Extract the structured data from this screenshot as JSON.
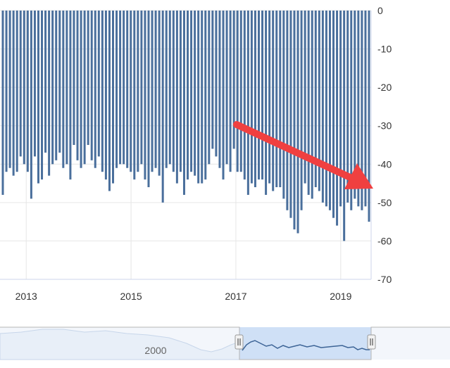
{
  "chart_data": {
    "type": "bar",
    "title": "",
    "xlabel": "",
    "ylabel": "",
    "ylim": [
      -70,
      0
    ],
    "y_ticks": [
      0,
      -10,
      -20,
      -30,
      -40,
      -50,
      -60,
      -70
    ],
    "x_ticks": [
      "2013",
      "2015",
      "2017",
      "2019"
    ],
    "x_range": [
      2012.5,
      2019.58
    ],
    "bar_color": "#4a6f9c",
    "grid": true,
    "values": [
      -48,
      -42,
      -41,
      -43,
      -42,
      -38,
      -40,
      -42,
      -49,
      -38,
      -45,
      -44,
      -37,
      -43,
      -40,
      -39,
      -37,
      -41,
      -40,
      -44,
      -35,
      -39,
      -41,
      -40,
      -35,
      -39,
      -41,
      -38,
      -42,
      -44,
      -47,
      -45,
      -41,
      -40,
      -40,
      -41,
      -42,
      -44,
      -42,
      -40,
      -44,
      -46,
      -42,
      -41,
      -43,
      -50,
      -41,
      -40,
      -42,
      -45,
      -42,
      -48,
      -44,
      -42,
      -43,
      -45,
      -45,
      -44,
      -40,
      -36,
      -38,
      -41,
      -44,
      -40,
      -42,
      -36,
      -42,
      -42,
      -44,
      -48,
      -45,
      -46,
      -44,
      -44,
      -48,
      -45,
      -47,
      -46,
      -46,
      -49,
      -52,
      -54,
      -57,
      -58,
      -52,
      -45,
      -48,
      -49,
      -46,
      -47,
      -50,
      -51,
      -52,
      -54,
      -56,
      -51,
      -60,
      -50,
      -52,
      -49,
      -51,
      -52,
      -51,
      -55
    ],
    "annotation": {
      "type": "arrow",
      "color": "#f04040"
    },
    "navigator": {
      "label": "2000"
    }
  }
}
